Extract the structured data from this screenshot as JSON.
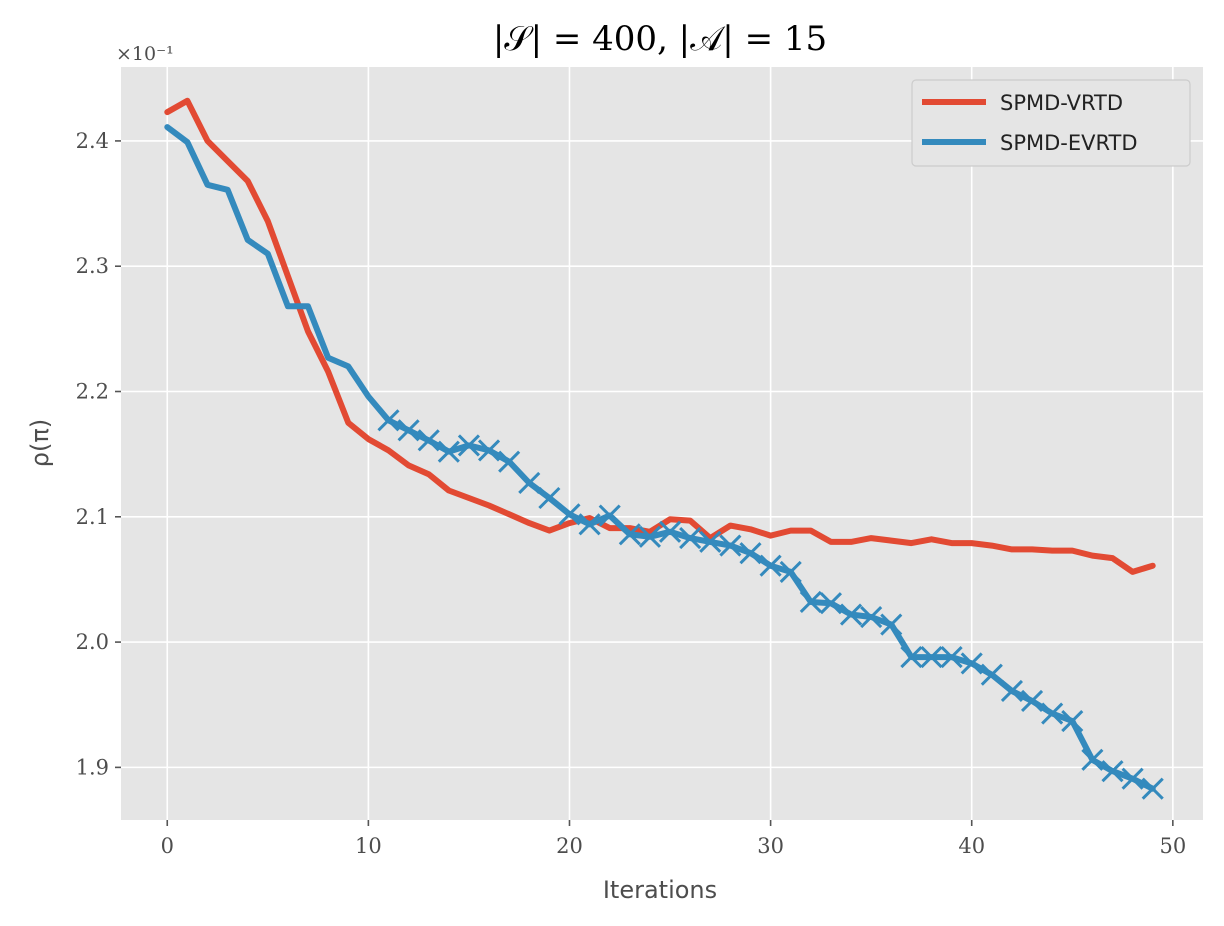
{
  "chart_data": {
    "type": "line",
    "title": "|𝒮| = 400, |𝒜| = 15",
    "xlabel": "Iterations",
    "ylabel": "ρ(π)",
    "y_offset_label": "×10⁻¹",
    "xlim": [
      -2.3,
      51.5
    ],
    "ylim": [
      1.858,
      2.459
    ],
    "xticks": [
      0,
      10,
      20,
      30,
      40,
      50
    ],
    "yticks": [
      1.9,
      2.0,
      2.1,
      2.2,
      2.3,
      2.4
    ],
    "ytick_labels": [
      "1.9",
      "2.0",
      "2.1",
      "2.2",
      "2.3",
      "2.4"
    ],
    "grid": true,
    "legend_position": "top-right",
    "x": [
      0,
      1,
      2,
      3,
      4,
      5,
      6,
      7,
      8,
      9,
      10,
      11,
      12,
      13,
      14,
      15,
      16,
      17,
      18,
      19,
      20,
      21,
      22,
      23,
      24,
      25,
      26,
      27,
      28,
      29,
      30,
      31,
      32,
      33,
      34,
      35,
      36,
      37,
      38,
      39,
      40,
      41,
      42,
      43,
      44,
      45,
      46,
      47,
      48,
      49
    ],
    "series": [
      {
        "name": "SPMD-VRTD",
        "color": "#e24a33",
        "markers": false,
        "values": [
          2.423,
          2.432,
          2.4,
          2.384,
          2.368,
          2.336,
          2.292,
          2.248,
          2.216,
          2.175,
          2.162,
          2.153,
          2.141,
          2.134,
          2.121,
          2.115,
          2.109,
          2.102,
          2.095,
          2.089,
          2.095,
          2.099,
          2.091,
          2.091,
          2.088,
          2.098,
          2.097,
          2.083,
          2.093,
          2.09,
          2.085,
          2.089,
          2.089,
          2.08,
          2.08,
          2.083,
          2.081,
          2.079,
          2.082,
          2.079,
          2.079,
          2.077,
          2.074,
          2.074,
          2.073,
          2.073,
          2.069,
          2.067,
          2.056,
          2.061
        ]
      },
      {
        "name": "SPMD-EVRTD",
        "color": "#348abd",
        "markers": true,
        "marker_start_index": 11,
        "values": [
          2.411,
          2.399,
          2.365,
          2.361,
          2.321,
          2.31,
          2.268,
          2.268,
          2.227,
          2.22,
          2.196,
          2.177,
          2.169,
          2.161,
          2.152,
          2.157,
          2.153,
          2.144,
          2.127,
          2.115,
          2.102,
          2.094,
          2.101,
          2.086,
          2.084,
          2.088,
          2.083,
          2.08,
          2.077,
          2.071,
          2.061,
          2.056,
          2.032,
          2.031,
          2.022,
          2.02,
          2.014,
          1.988,
          1.988,
          1.988,
          1.983,
          1.974,
          1.961,
          1.953,
          1.943,
          1.937,
          1.906,
          1.897,
          1.891,
          1.883
        ]
      }
    ]
  }
}
